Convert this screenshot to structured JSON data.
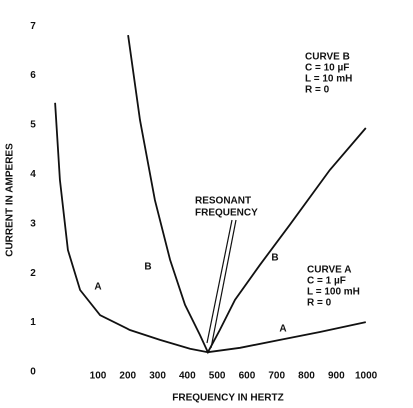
{
  "chart_data": {
    "type": "line",
    "xlabel": "FREQUENCY IN HERTZ",
    "ylabel": "CURRENT IN AMPERES",
    "xlim": [
      -50,
      1050
    ],
    "ylim": [
      0,
      7
    ],
    "xticks": [
      100,
      200,
      300,
      400,
      500,
      600,
      700,
      800,
      900,
      1000
    ],
    "yticks": [
      0,
      1,
      2,
      3,
      4,
      5,
      6,
      7
    ],
    "grid": false,
    "series": [
      {
        "name": "A",
        "color": "#111111",
        "x": [
          -44,
          -28,
          -1,
          40,
          107,
          207,
          308,
          409,
          469,
          577,
          711,
          845,
          999
        ],
        "values": [
          5.45,
          3.89,
          2.47,
          1.66,
          1.15,
          0.85,
          0.65,
          0.47,
          0.4,
          0.49,
          0.65,
          0.81,
          1.01
        ]
      },
      {
        "name": "B",
        "color": "#111111",
        "x": [
          201,
          241,
          291,
          342,
          392,
          442,
          469,
          509,
          560,
          644,
          744,
          878,
          999
        ],
        "values": [
          6.82,
          5.1,
          3.48,
          2.27,
          1.36,
          0.75,
          0.4,
          0.85,
          1.46,
          2.17,
          2.98,
          4.09,
          4.94
        ]
      }
    ],
    "annotation": [
      "RESONANT",
      "FREQUENCY"
    ],
    "notes": [
      [
        "CURVE B",
        "C = 10 µF",
        "L = 10 mH",
        "R = 0"
      ],
      [
        "CURVE A",
        "C = 1 µF",
        "L = 100 mH",
        "R = 0"
      ]
    ]
  }
}
